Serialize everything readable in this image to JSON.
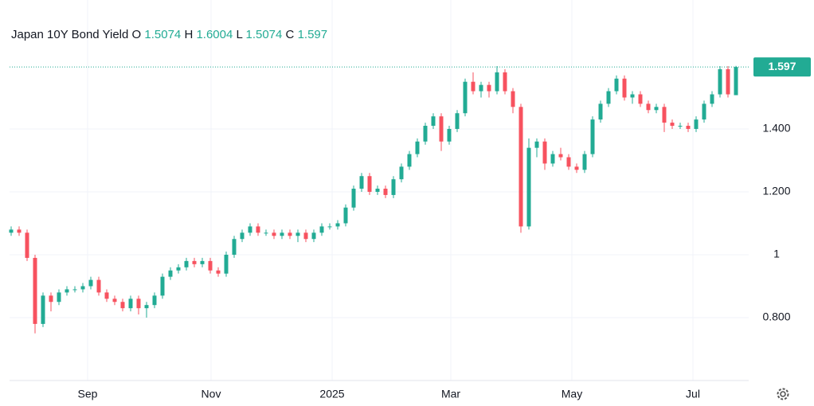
{
  "chart_data": {
    "type": "candlestick",
    "title": "Japan 10Y Bond Yield",
    "ohlc_labels": [
      "O",
      "H",
      "L",
      "C"
    ],
    "up_color": "#22ab94",
    "down_color": "#f7525f",
    "grid": true,
    "open": [
      1.07,
      1.08,
      1.07,
      0.99,
      0.78,
      0.87,
      0.85,
      0.88,
      0.89,
      0.89,
      0.9,
      0.92,
      0.88,
      0.86,
      0.85,
      0.83,
      0.86,
      0.83,
      0.84,
      0.87,
      0.93,
      0.95,
      0.96,
      0.98,
      0.97,
      0.98,
      0.95,
      0.94,
      1.0,
      1.05,
      1.07,
      1.09,
      1.07,
      1.07,
      1.06,
      1.07,
      1.06,
      1.07,
      1.05,
      1.07,
      1.09,
      1.09,
      1.1,
      1.15,
      1.21,
      1.25,
      1.2,
      1.21,
      1.19,
      1.24,
      1.28,
      1.32,
      1.36,
      1.41,
      1.44,
      1.36,
      1.4,
      1.45,
      1.55,
      1.52,
      1.54,
      1.52,
      1.58,
      1.52,
      1.47,
      1.09,
      1.34,
      1.36,
      1.29,
      1.32,
      1.31,
      1.28,
      1.27,
      1.32,
      1.43,
      1.48,
      1.52,
      1.56,
      1.5,
      1.51,
      1.48,
      1.46,
      1.47,
      1.42,
      1.41,
      1.41,
      1.4,
      1.43,
      1.48,
      1.51,
      1.59,
      1.5074
    ],
    "high": [
      1.09,
      1.09,
      1.08,
      1.0,
      0.88,
      0.88,
      0.89,
      0.9,
      0.9,
      0.91,
      0.93,
      0.93,
      0.89,
      0.87,
      0.86,
      0.87,
      0.87,
      0.85,
      0.88,
      0.94,
      0.96,
      0.97,
      0.99,
      0.99,
      0.99,
      0.99,
      0.96,
      1.01,
      1.06,
      1.08,
      1.1,
      1.1,
      1.08,
      1.08,
      1.08,
      1.08,
      1.08,
      1.08,
      1.08,
      1.1,
      1.1,
      1.11,
      1.16,
      1.22,
      1.26,
      1.26,
      1.22,
      1.22,
      1.25,
      1.29,
      1.33,
      1.37,
      1.42,
      1.45,
      1.45,
      1.41,
      1.46,
      1.56,
      1.58,
      1.55,
      1.55,
      1.6,
      1.59,
      1.53,
      1.48,
      1.37,
      1.37,
      1.37,
      1.33,
      1.34,
      1.32,
      1.29,
      1.33,
      1.44,
      1.49,
      1.53,
      1.57,
      1.57,
      1.52,
      1.52,
      1.49,
      1.48,
      1.48,
      1.43,
      1.42,
      1.42,
      1.44,
      1.49,
      1.52,
      1.6,
      1.6,
      1.6004
    ],
    "low": [
      1.06,
      1.06,
      0.98,
      0.75,
      0.77,
      0.82,
      0.84,
      0.87,
      0.88,
      0.88,
      0.89,
      0.87,
      0.85,
      0.84,
      0.82,
      0.82,
      0.81,
      0.8,
      0.83,
      0.86,
      0.92,
      0.94,
      0.95,
      0.96,
      0.96,
      0.94,
      0.93,
      0.93,
      0.99,
      1.04,
      1.06,
      1.06,
      1.06,
      1.05,
      1.05,
      1.05,
      1.04,
      1.04,
      1.04,
      1.06,
      1.08,
      1.08,
      1.09,
      1.14,
      1.2,
      1.19,
      1.19,
      1.18,
      1.18,
      1.23,
      1.27,
      1.31,
      1.35,
      1.4,
      1.33,
      1.35,
      1.39,
      1.44,
      1.51,
      1.5,
      1.5,
      1.51,
      1.51,
      1.45,
      1.07,
      1.08,
      1.31,
      1.27,
      1.28,
      1.3,
      1.27,
      1.26,
      1.26,
      1.31,
      1.42,
      1.47,
      1.51,
      1.49,
      1.48,
      1.47,
      1.45,
      1.45,
      1.39,
      1.4,
      1.4,
      1.39,
      1.39,
      1.42,
      1.47,
      1.5,
      1.5,
      1.5074
    ],
    "close": [
      1.08,
      1.07,
      0.99,
      0.78,
      0.87,
      0.85,
      0.88,
      0.89,
      0.89,
      0.9,
      0.92,
      0.88,
      0.86,
      0.85,
      0.83,
      0.86,
      0.83,
      0.84,
      0.87,
      0.93,
      0.95,
      0.96,
      0.98,
      0.97,
      0.98,
      0.95,
      0.94,
      1.0,
      1.05,
      1.07,
      1.09,
      1.07,
      1.07,
      1.06,
      1.07,
      1.06,
      1.07,
      1.05,
      1.07,
      1.09,
      1.09,
      1.1,
      1.15,
      1.21,
      1.25,
      1.2,
      1.21,
      1.19,
      1.24,
      1.28,
      1.32,
      1.36,
      1.41,
      1.44,
      1.36,
      1.4,
      1.45,
      1.55,
      1.52,
      1.54,
      1.52,
      1.58,
      1.52,
      1.47,
      1.09,
      1.34,
      1.36,
      1.29,
      1.32,
      1.31,
      1.28,
      1.27,
      1.32,
      1.43,
      1.48,
      1.52,
      1.56,
      1.5,
      1.51,
      1.48,
      1.46,
      1.47,
      1.42,
      1.41,
      1.41,
      1.4,
      1.43,
      1.48,
      1.51,
      1.59,
      1.51,
      1.597
    ],
    "xlim": [
      -0.2,
      92.6
    ],
    "xticks": [
      {
        "value": 9.6,
        "label": "Sep"
      },
      {
        "value": 25.1,
        "label": "Nov"
      },
      {
        "value": 40.3,
        "label": "2025"
      },
      {
        "value": 55.2,
        "label": "Mar"
      },
      {
        "value": 70.4,
        "label": "May"
      },
      {
        "value": 85.6,
        "label": "Jul"
      }
    ],
    "ylim": [
      0.6,
      1.81
    ],
    "yticks": [
      {
        "value": 0.8,
        "label": "0.800"
      },
      1,
      {
        "value": 1.2,
        "label": "1.200"
      },
      {
        "value": 1.4,
        "label": "1.400"
      }
    ]
  }
}
